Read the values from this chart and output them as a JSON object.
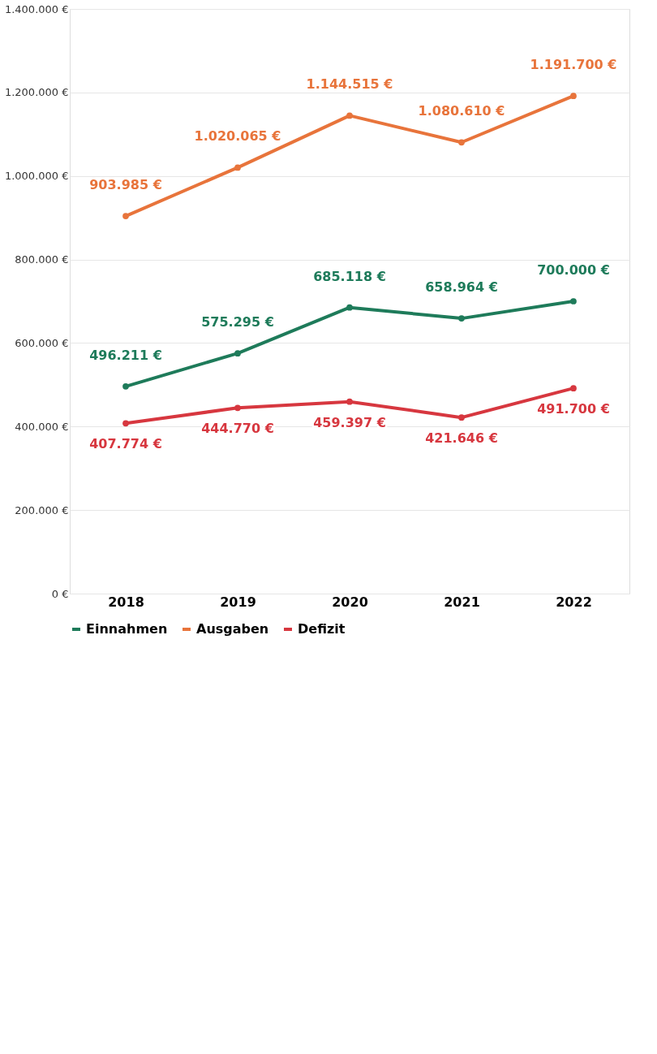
{
  "chart_data": {
    "type": "line",
    "categories": [
      "2018",
      "2019",
      "2020",
      "2021",
      "2022"
    ],
    "series": [
      {
        "name": "Einnahmen",
        "color": "#1e7b5a",
        "values": [
          496211,
          575295,
          685118,
          658964,
          700000
        ],
        "value_labels": [
          "496.211 €",
          "575.295 €",
          "685.118 €",
          "658.964 €",
          "700.000 €"
        ]
      },
      {
        "name": "Ausgaben",
        "color": "#e8743b",
        "values": [
          903985,
          1020065,
          1144515,
          1080610,
          1191700
        ],
        "value_labels": [
          "903.985 €",
          "1.020.065 €",
          "1.144.515 €",
          "1.080.610 €",
          "1.191.700 €"
        ]
      },
      {
        "name": "Defizit",
        "color": "#d7373f",
        "values": [
          407774,
          444770,
          459397,
          421646,
          491700
        ],
        "value_labels": [
          "407.774 €",
          "444.770 €",
          "459.397 €",
          "421.646 €",
          "491.700 €"
        ]
      }
    ],
    "ylim": [
      0,
      1400000
    ],
    "yticks": [
      {
        "value": 0,
        "label": "0 €"
      },
      {
        "value": 200000,
        "label": "200.000 €"
      },
      {
        "value": 400000,
        "label": "400.000 €"
      },
      {
        "value": 600000,
        "label": "600.000 €"
      },
      {
        "value": 800000,
        "label": "800.000 €"
      },
      {
        "value": 1000000,
        "label": "1.000.000 €"
      },
      {
        "value": 1200000,
        "label": "1.200.000 €"
      },
      {
        "value": 1400000,
        "label": "1.400.000 €"
      }
    ],
    "grid": "y",
    "legend": "bottom",
    "marker": "circle",
    "line_style": "solid"
  }
}
